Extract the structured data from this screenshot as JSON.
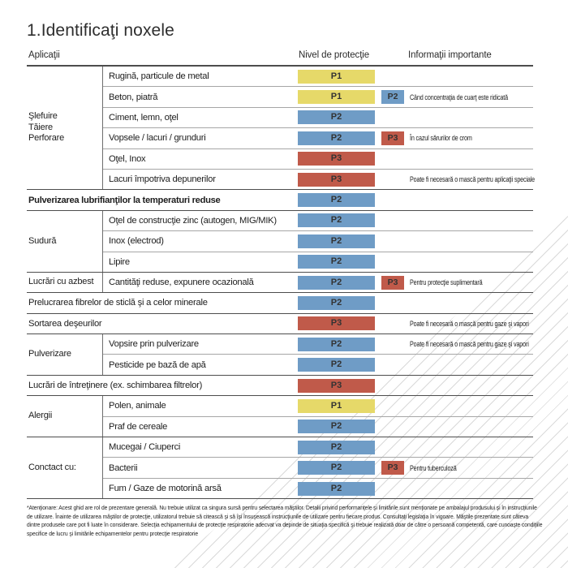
{
  "title": "1.Identificaţi noxele",
  "columns": {
    "applications": "Aplicaţii",
    "protection": "Nivel de protecţie",
    "info": "Informaţii importante"
  },
  "colors": {
    "P1": "#e6d969",
    "P2": "#6f9cc6",
    "P3": "#c05a4a"
  },
  "sections": [
    {
      "label_lines": [
        "Şlefuire",
        "Tăiere",
        "Perforare"
      ],
      "rows": [
        {
          "item": "Rugină, particule de metal",
          "badge": "P1"
        },
        {
          "item": "Beton, piatră",
          "badge": "P1",
          "chip": "P2",
          "note": "Când concentraţia de cuarţ este ridicată"
        },
        {
          "item": "Ciment, lemn, oţel",
          "badge": "P2"
        },
        {
          "item": "Vopsele / lacuri / grunduri",
          "badge": "P2",
          "chip": "P3",
          "note": "În cazul sărurilor de crom"
        },
        {
          "item": "Oţel, Inox",
          "badge": "P3"
        },
        {
          "item": "Lacuri împotriva depunerilor",
          "badge": "P3",
          "note": "Poate fi necesară o mască pentru aplicaţii speciale"
        }
      ]
    },
    {
      "item": "Pulverizarea lubrifianţilor la temperaturi reduse",
      "badge": "P2",
      "bold": true
    },
    {
      "label_lines": [
        "Sudură"
      ],
      "rows": [
        {
          "item": "Oţel de construcţie zinc (autogen, MIG/MIK)",
          "badge": "P2"
        },
        {
          "item": "Inox (electrod)",
          "badge": "P2"
        },
        {
          "item": "Lipire",
          "badge": "P2"
        }
      ]
    },
    {
      "label_lines": [
        "Lucrări cu azbest"
      ],
      "rows": [
        {
          "item": "Cantităţi reduse, expunere ocazională",
          "badge": "P2",
          "chip": "P3",
          "note": "Pentru protecţie suplimentară"
        }
      ]
    },
    {
      "item": "Prelucrarea fibrelor de sticlă şi a celor minerale",
      "badge": "P2"
    },
    {
      "item": "Sortarea deşeurilor",
      "badge": "P3",
      "note": "Poate fi necesară o mască pentru gaze şi vapori"
    },
    {
      "label_lines": [
        "Pulverizare"
      ],
      "rows": [
        {
          "item": "Vopsire prin pulverizare",
          "badge": "P2",
          "note": "Poate fi necesară o mască pentru gaze şi vapori"
        },
        {
          "item": "Pesticide pe bază de apă",
          "badge": "P2"
        }
      ]
    },
    {
      "item": "Lucrări de întreţinere (ex. schimbarea filtrelor)",
      "badge": "P3"
    },
    {
      "label_lines": [
        "Alergii"
      ],
      "rows": [
        {
          "item": "Polen, animale",
          "badge": "P1"
        },
        {
          "item": "Praf de cereale",
          "badge": "P2"
        }
      ]
    },
    {
      "label_lines": [
        "Conctact cu:"
      ],
      "rows": [
        {
          "item": "Mucegai / Ciuperci",
          "badge": "P2"
        },
        {
          "item": "Bacterii",
          "badge": "P2",
          "chip": "P3",
          "note": "Pentru tuberculoză"
        },
        {
          "item": "Fum / Gaze de motorină arsă",
          "badge": "P2"
        }
      ]
    }
  ],
  "footnote": {
    "lines": [
      "*Atenţionare: Acest ghid are rol de prezentare generală. Nu trebuie utilizat ca singura sursă pentru selectarea măştilor. Detalii privind performanţele şi limitările sunt menţionate pe ambalajul produsului şi în instrucţiunile",
      "de utilizare. Înainte de utilizarea măştilor de protecţie, utilizatorul trebuie să citească şi să îşi însuşească instrucţiunile de utilizare pentru fiecare produs. Consultaţi legislaţia în vigoare. Măştile prezentate sunt câteva",
      "dintre produsele care pot fi luate în considerare. Selecţia echipamentului de protecţie respiratorie adecvat va depinde de situaţia specifică şi trebuie realizată doar de către o persoană competentă, care cunoaşte condiţiile",
      "specifice de lucru şi limitările echipamentelor pentru protecţie respiratorie"
    ]
  }
}
